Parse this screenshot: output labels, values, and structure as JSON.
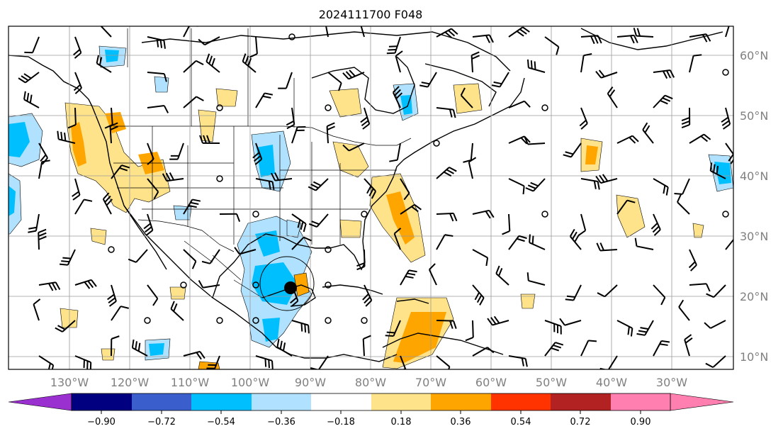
{
  "title": "2024111700 F048",
  "map": {
    "lon_labels": [
      "130°W",
      "120°W",
      "110°W",
      "100°W",
      "90°W",
      "80°W",
      "70°W",
      "60°W",
      "50°W",
      "40°W",
      "30°W"
    ],
    "lat_labels": [
      "60°N",
      "50°N",
      "40°N",
      "30°N",
      "20°N",
      "10°N"
    ],
    "lon_range": [
      -140,
      -20
    ],
    "lat_range": [
      8,
      65
    ],
    "grid": true,
    "storm_marker": {
      "lon": -93,
      "lat": 21.5
    }
  },
  "colorbar": {
    "tick_labels": [
      "−0.90",
      "−0.72",
      "−0.54",
      "−0.36",
      "−0.18",
      "0.18",
      "0.36",
      "0.54",
      "0.72",
      "0.90"
    ],
    "colors": [
      "#9b30d0",
      "#000080",
      "#3a5fcd",
      "#00bfff",
      "#b0e2ff",
      "#ffffff",
      "#ffe38a",
      "#ffa500",
      "#ff3300",
      "#b22222",
      "#ff80b0"
    ],
    "extend": "both"
  }
}
